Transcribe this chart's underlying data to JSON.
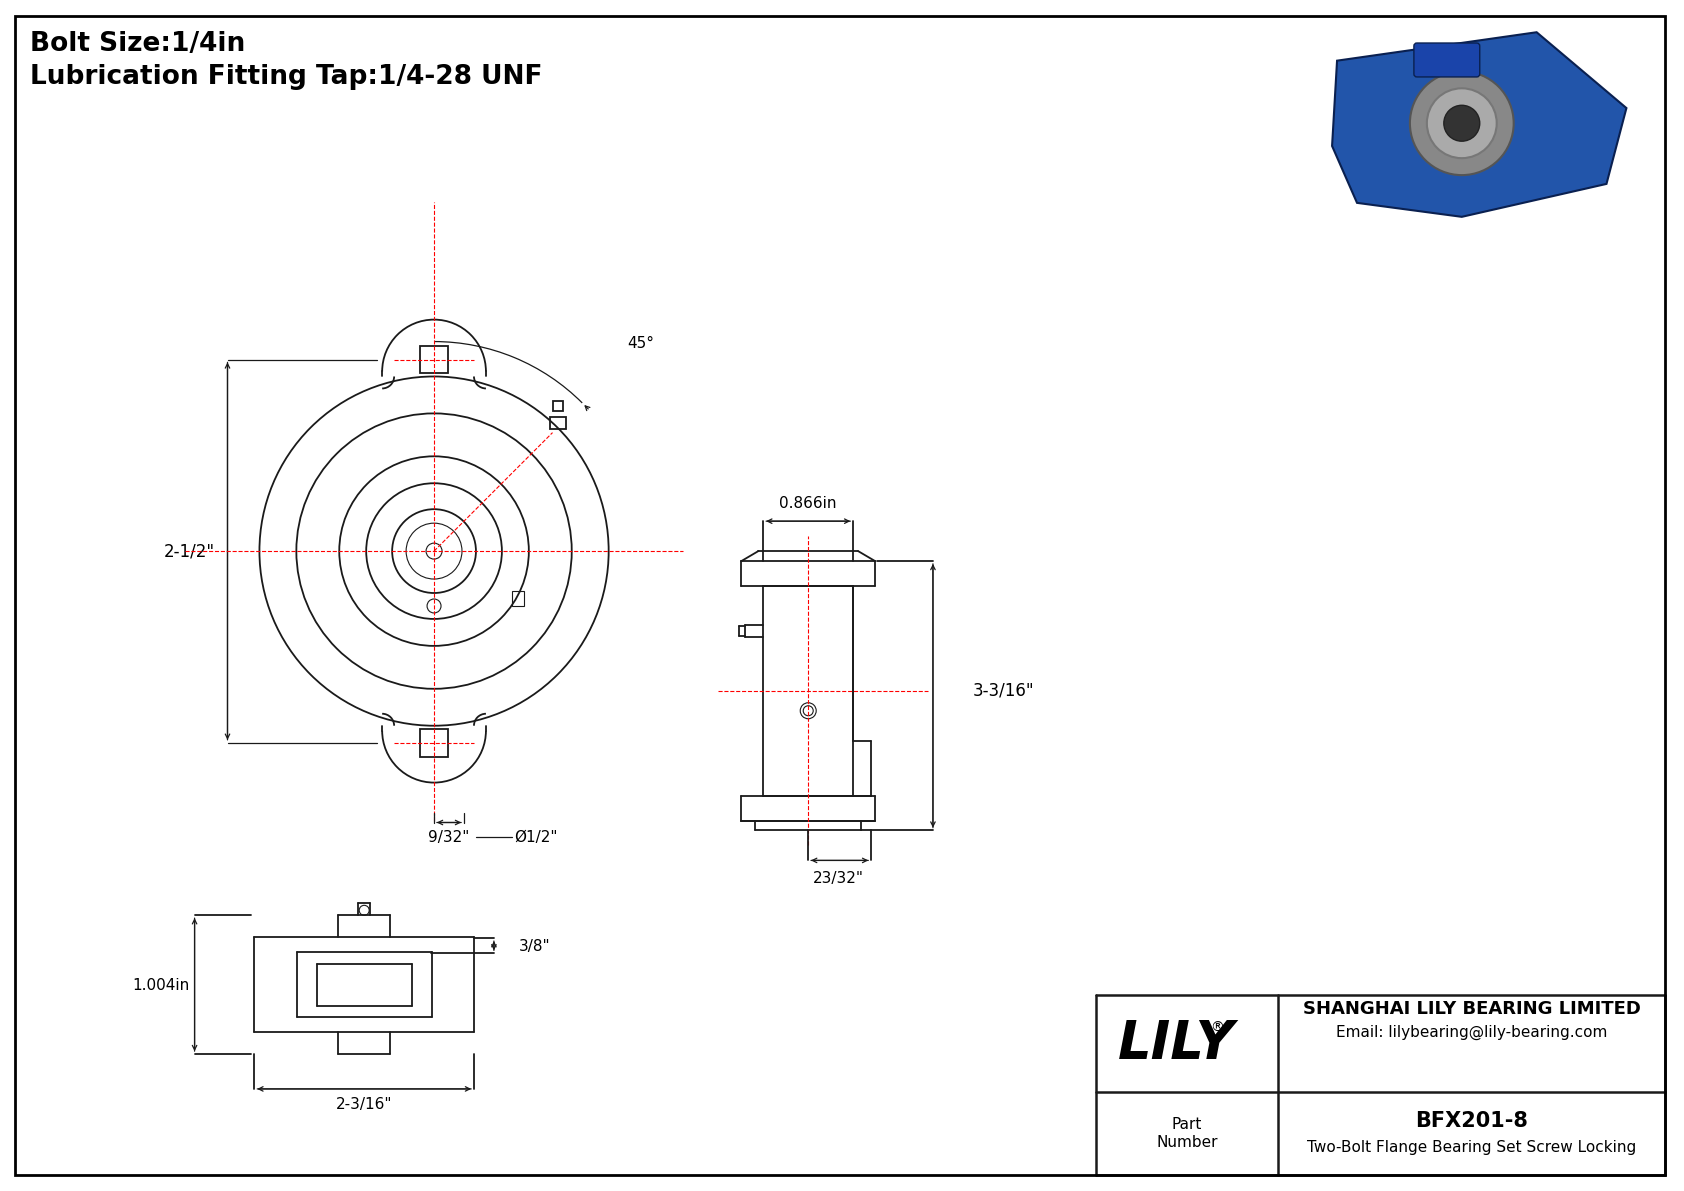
{
  "bg_color": "#ffffff",
  "border_color": "#000000",
  "line_color": "#1a1a1a",
  "dim_color": "#1a1a1a",
  "center_line_color": "#ff0000",
  "title_line1": "Bolt Size:1/4in",
  "title_line2": "Lubrication Fitting Tap:1/4-28 UNF",
  "company_name": "SHANGHAI LILY BEARING LIMITED",
  "company_email": "Email: lilybearing@lily-bearing.com",
  "part_number": "BFX201-8",
  "part_description": "Two-Bolt Flange Bearing Set Screw Locking",
  "lily_logo": "LILY",
  "dim_2_1_2": "2-1/2\"",
  "dim_45": "45°",
  "dim_9_32": "9/32\"",
  "dim_1_2": "Ø1/2\"",
  "dim_0_866": "0.866in",
  "dim_3_3_16": "3-3/16\"",
  "dim_23_32": "23/32\"",
  "dim_3_8": "3/8\"",
  "dim_1_004": "1.004in",
  "dim_2_3_16": "2-3/16\""
}
